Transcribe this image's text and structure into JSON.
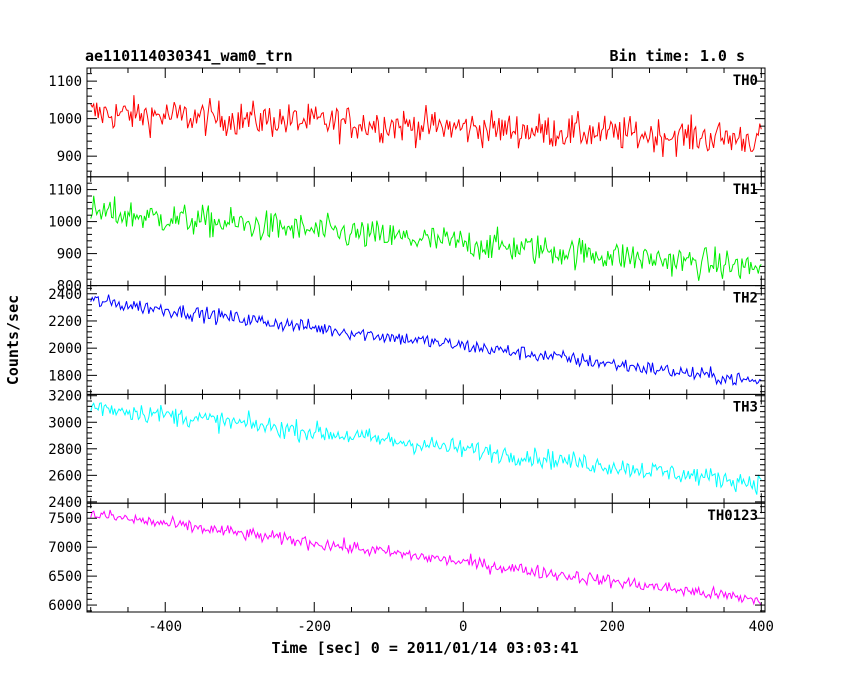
{
  "header": {
    "left_title": "ae110114030341_wam0_trn",
    "right_title": "Bin time: 1.0 s"
  },
  "chart_data": {
    "type": "line",
    "xlabel": "Time [sec] 0 = 2011/01/14 03:03:41",
    "ylabel": "Counts/sec",
    "xlim": [
      -505,
      405
    ],
    "xticks": [
      -400,
      -200,
      0,
      200,
      400
    ],
    "sample_step_sec": 2,
    "panels": [
      {
        "name": "TH0",
        "color": "#ff0000",
        "ylim": [
          845,
          1135
        ],
        "yticks": [
          900,
          1000,
          1100
        ],
        "trend": {
          "x": [
            -500,
            400
          ],
          "y": [
            1015,
            945
          ]
        },
        "noise_sd": 38
      },
      {
        "name": "TH1",
        "color": "#00ee00",
        "ylim": [
          800,
          1140
        ],
        "yticks": [
          800,
          900,
          1000,
          1100
        ],
        "trend": {
          "x": [
            -500,
            400
          ],
          "y": [
            1030,
            855
          ]
        },
        "noise_sd": 40
      },
      {
        "name": "TH2",
        "color": "#0000ff",
        "ylim": [
          1660,
          2460
        ],
        "yticks": [
          1800,
          2000,
          2200,
          2400
        ],
        "trend": {
          "x": [
            -500,
            400
          ],
          "y": [
            2350,
            1750
          ]
        },
        "noise_sd": 45
      },
      {
        "name": "TH3",
        "color": "#00ffff",
        "ylim": [
          2390,
          3210
        ],
        "yticks": [
          2400,
          2600,
          2800,
          3000,
          3200
        ],
        "trend": {
          "x": [
            -500,
            400
          ],
          "y": [
            3120,
            2540
          ]
        },
        "noise_sd": 60
      },
      {
        "name": "TH0123",
        "color": "#ff00ff",
        "ylim": [
          5880,
          7760
        ],
        "yticks": [
          6000,
          6500,
          7000,
          7500
        ],
        "trend": {
          "x": [
            -500,
            400
          ],
          "y": [
            7570,
            6080
          ]
        },
        "noise_sd": 95
      }
    ]
  }
}
